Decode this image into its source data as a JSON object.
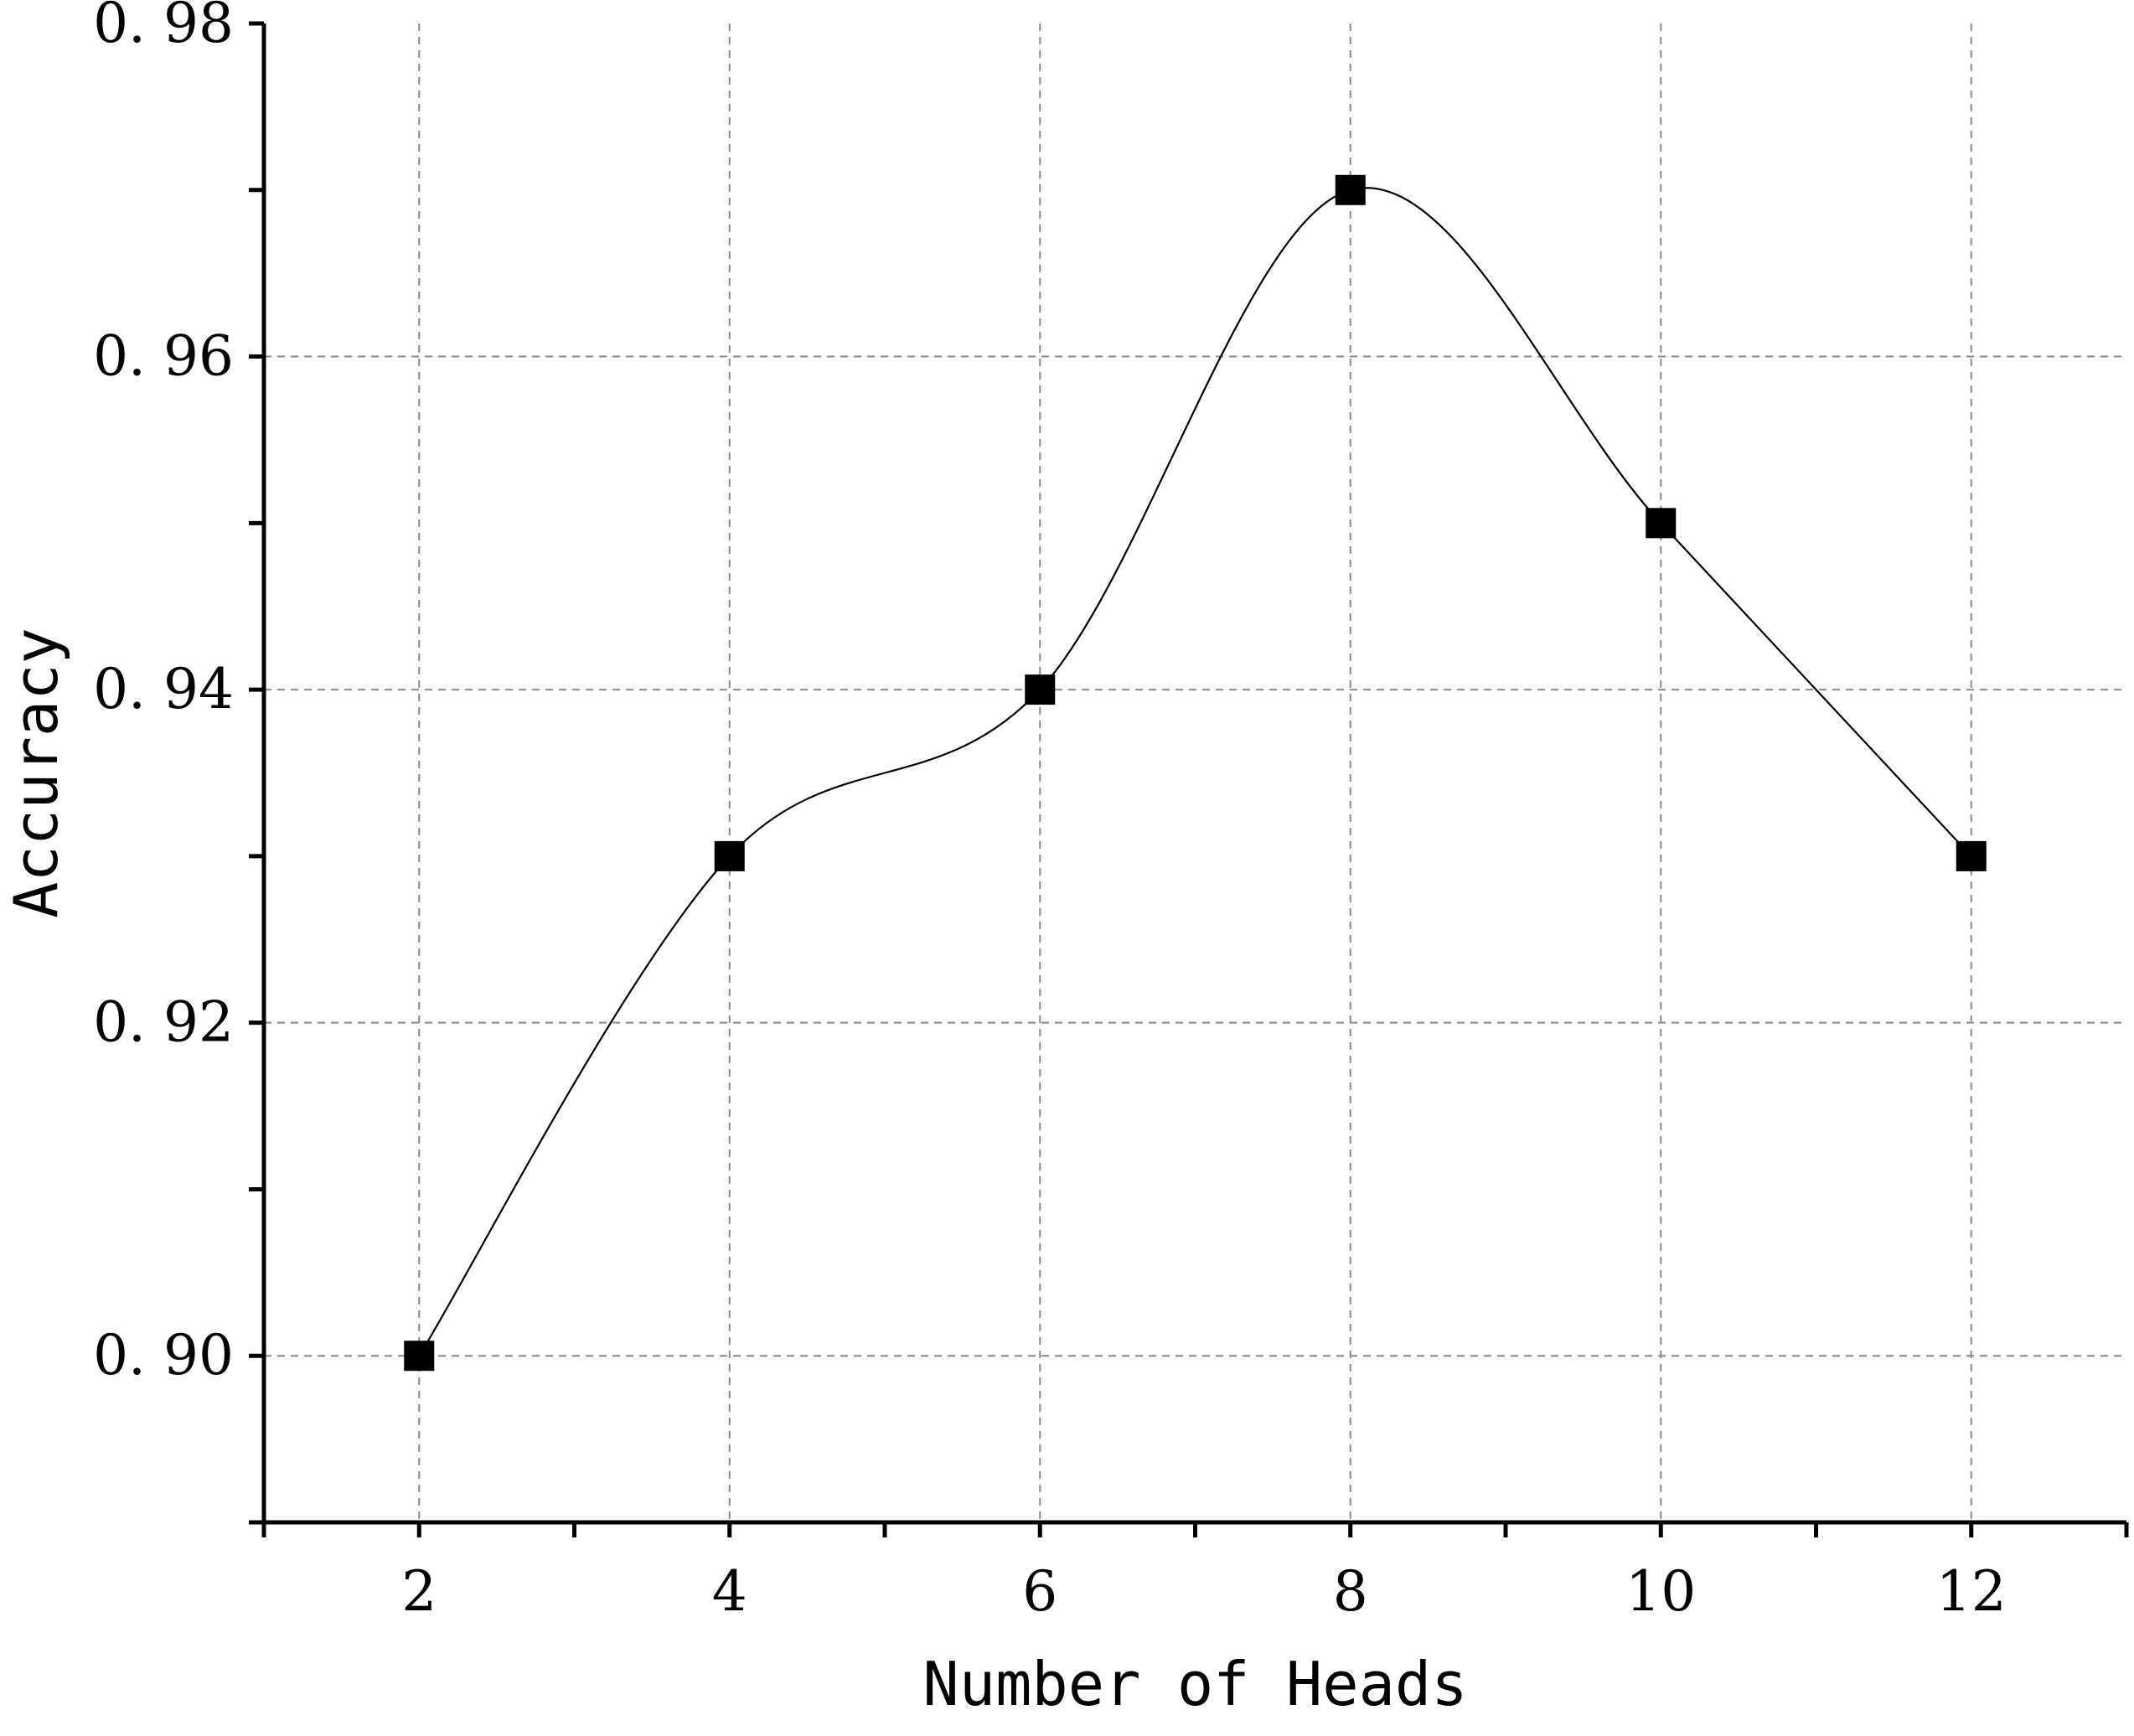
{
  "chart_data": {
    "type": "line",
    "xlabel": "Number of Heads",
    "ylabel": "Accuracy",
    "x": [
      2,
      4,
      6,
      8,
      10,
      12
    ],
    "series": [
      {
        "values": [
          0.9,
          0.93,
          0.94,
          0.97,
          0.95,
          0.93
        ],
        "marker": "square",
        "color": "#000000",
        "smooth": true
      }
    ],
    "xlim": [
      1,
      13
    ],
    "ylim": [
      0.89,
      0.98
    ],
    "xticks": [
      2,
      4,
      6,
      8,
      10,
      12
    ],
    "xtick_labels": [
      "2",
      "4",
      "6",
      "8",
      "10",
      "12"
    ],
    "yticks": [
      0.9,
      0.92,
      0.94,
      0.96,
      0.98
    ],
    "ytick_labels": [
      "0. 90",
      "0. 92",
      "0. 94",
      "0. 96",
      "0. 98"
    ],
    "grid": true,
    "legend": false
  }
}
